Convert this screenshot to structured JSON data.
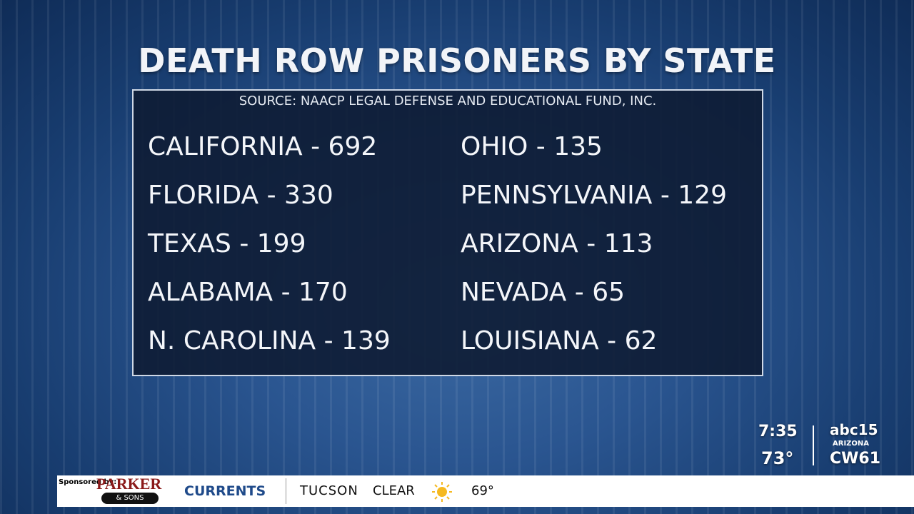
{
  "header": {
    "title": "DEATH ROW PRISONERS BY STATE",
    "source": "SOURCE: NAACP LEGAL DEFENSE AND EDUCATIONAL FUND, INC."
  },
  "list": {
    "left": [
      "CALIFORNIA - 692",
      "FLORIDA - 330",
      "TEXAS - 199",
      "ALABAMA - 170",
      "N. CAROLINA - 139"
    ],
    "right": [
      "OHIO - 135",
      "PENNSYLVANIA - 129",
      "ARIZONA - 113",
      "NEVADA - 65",
      "LOUISIANA - 62"
    ]
  },
  "bug": {
    "time": "7:35",
    "temperature": "73°",
    "logo_top": "abc15",
    "logo_middle": "ARIZONA",
    "logo_bottom": "CW61"
  },
  "ticker": {
    "sponsor_label": "Sponsored by:",
    "sponsor_name": "PARKER",
    "sponsor_sub": "& SONS",
    "segment": "CURRENTS",
    "city": "TUCSON",
    "condition": "CLEAR",
    "temperature": "69°"
  }
}
